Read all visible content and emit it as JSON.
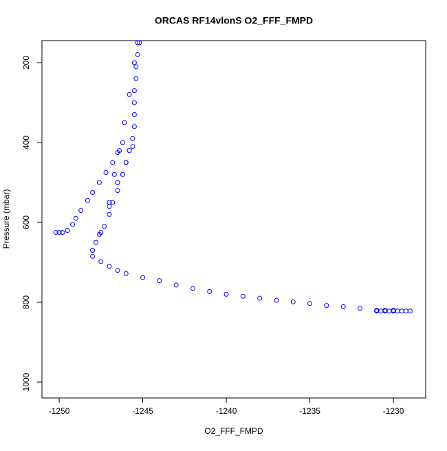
{
  "chart_data": {
    "type": "scatter",
    "title": "ORCAS RF14vlonS O2_FFF_FMPD",
    "x_label": "O2_FFF_FMPD",
    "y_label": "Pressure (mbar)",
    "color": "#0000ff",
    "xlim": [
      -1251.03,
      -1228.07
    ],
    "ylim": [
      1039.7,
      144.8
    ],
    "xticks": [
      -1250,
      -1245,
      -1240,
      -1235,
      -1230
    ],
    "yticks": [
      200,
      400,
      600,
      800,
      1000
    ],
    "x": [
      -1231,
      -1230.75,
      -1230.5,
      -1230.25,
      -1230,
      -1229.75,
      -1229.5,
      -1229.25,
      -1229,
      -1231,
      -1230.5,
      -1230,
      -1232,
      -1233,
      -1234,
      -1235,
      -1236,
      -1237,
      -1238,
      -1239,
      -1240,
      -1241,
      -1242,
      -1243,
      -1244,
      -1245,
      -1246,
      -1246.5,
      -1247,
      -1247.5,
      -1248,
      -1248,
      -1247.8,
      -1247.6,
      -1247.3,
      -1247,
      -1246.8,
      -1246.5,
      -1246.2,
      -1246,
      -1245.8,
      -1245.6,
      -1245.5,
      -1245.5,
      -1245.5,
      -1245.5,
      -1245.4,
      -1245.4,
      -1245.3,
      -1245.3,
      -1245.6,
      -1246,
      -1246.5,
      -1247,
      -1247.5,
      -1247,
      -1246.7,
      -1246.4,
      -1246.1,
      -1245.8,
      -1245.5,
      -1245.2,
      -1250.2,
      -1250,
      -1249.8,
      -1249.5,
      -1249.2,
      -1249,
      -1248.7,
      -1248.3,
      -1248,
      -1247.6,
      -1247.2,
      -1246.8,
      -1246.5,
      -1246.2
    ],
    "y": [
      822,
      822,
      822,
      822,
      822,
      822,
      822,
      822,
      822,
      820,
      820,
      820,
      815,
      811,
      808,
      803,
      799,
      795,
      790,
      785,
      780,
      773,
      765,
      757,
      746,
      738,
      728,
      720,
      710,
      698,
      685,
      670,
      650,
      630,
      610,
      580,
      550,
      520,
      480,
      450,
      420,
      390,
      360,
      330,
      300,
      270,
      240,
      210,
      180,
      150,
      410,
      450,
      500,
      560,
      625,
      550,
      480,
      420,
      350,
      280,
      200,
      150,
      625,
      625,
      625,
      620,
      605,
      590,
      570,
      545,
      525,
      500,
      475,
      450,
      425,
      400
    ]
  }
}
